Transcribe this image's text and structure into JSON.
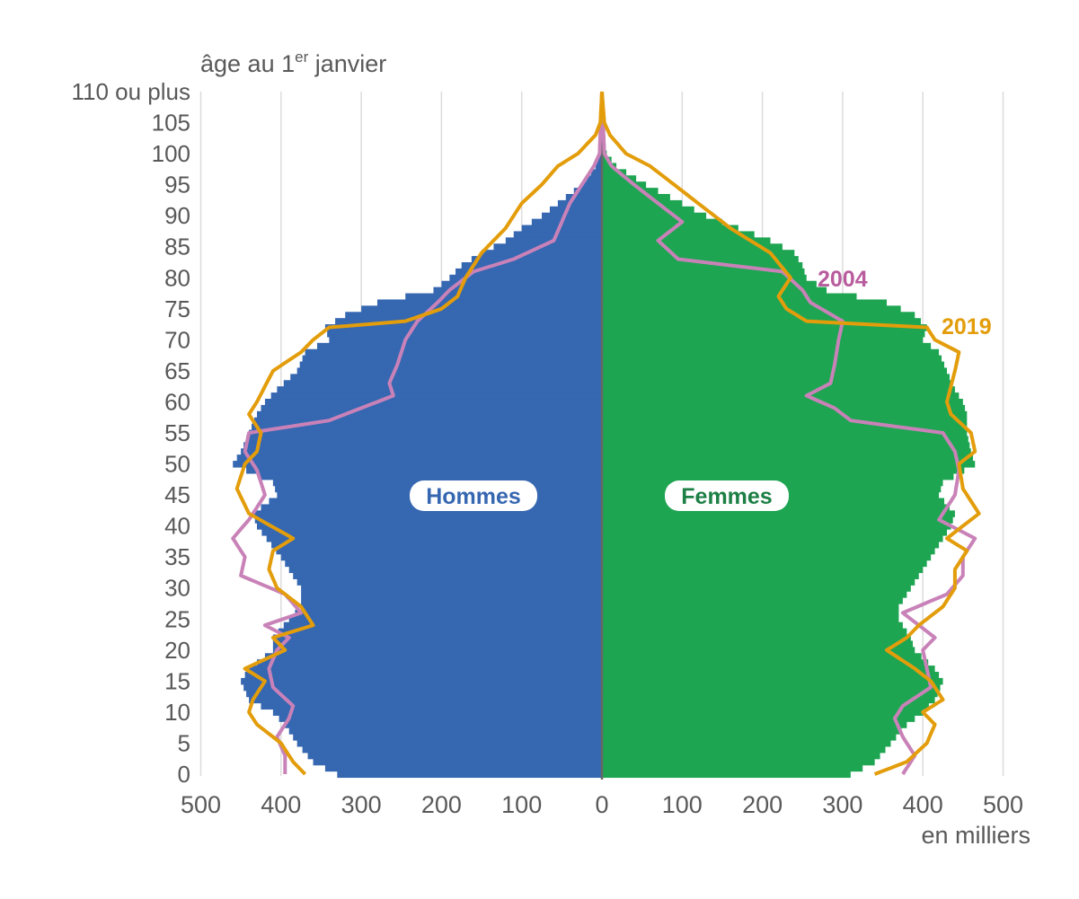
{
  "chart_data": {
    "type": "population-pyramid",
    "y_title": "âge au 1",
    "y_title_sup": "er",
    "y_title_end": " janvier",
    "x_unit_label": "en milliers",
    "x_ticks_left": [
      500,
      400,
      300,
      200,
      100,
      0
    ],
    "x_ticks_right": [
      100,
      200,
      300,
      400,
      500
    ],
    "y_ticks": [
      {
        "age": 110,
        "label": "110 ou plus"
      },
      {
        "age": 105,
        "label": "105"
      },
      {
        "age": 100,
        "label": "100"
      },
      {
        "age": 95,
        "label": "95"
      },
      {
        "age": 90,
        "label": "90"
      },
      {
        "age": 85,
        "label": "85"
      },
      {
        "age": 80,
        "label": "80"
      },
      {
        "age": 75,
        "label": "75"
      },
      {
        "age": 70,
        "label": "70"
      },
      {
        "age": 65,
        "label": "65"
      },
      {
        "age": 60,
        "label": "60"
      },
      {
        "age": 55,
        "label": "55"
      },
      {
        "age": 50,
        "label": "50"
      },
      {
        "age": 45,
        "label": "45"
      },
      {
        "age": 40,
        "label": "40"
      },
      {
        "age": 35,
        "label": "35"
      },
      {
        "age": 30,
        "label": "30"
      },
      {
        "age": 25,
        "label": "25"
      },
      {
        "age": 20,
        "label": "20"
      },
      {
        "age": 15,
        "label": "15"
      },
      {
        "age": 10,
        "label": "10"
      },
      {
        "age": 5,
        "label": "5"
      },
      {
        "age": 0,
        "label": "0"
      }
    ],
    "x_range": [
      -500,
      500
    ],
    "age_range": [
      0,
      110
    ],
    "colors": {
      "hommes": "#3667b1",
      "femmes": "#1ea552",
      "line_2019": "#e39d0b",
      "line_2004": "#c982b8",
      "line_2004_label": "#b85c9e",
      "axis_text": "#595959",
      "grid": "#dcdcdc",
      "center": "#666666"
    },
    "series": [
      {
        "name": "Hommes",
        "ages_knots": [
          0,
          2,
          5,
          8,
          10,
          12,
          15,
          17,
          20,
          22,
          25,
          27,
          30,
          35,
          40,
          42,
          45,
          47,
          50,
          52,
          55,
          58,
          60,
          62,
          65,
          68,
          70,
          72,
          74,
          76,
          78,
          80,
          82,
          84,
          86,
          88,
          90,
          92,
          95,
          98,
          100,
          103,
          105,
          110
        ],
        "values_knots": [
          330,
          360,
          380,
          395,
          410,
          440,
          450,
          440,
          410,
          410,
          390,
          375,
          375,
          400,
          430,
          435,
          405,
          410,
          460,
          450,
          440,
          430,
          420,
          405,
          380,
          370,
          340,
          345,
          320,
          280,
          210,
          190,
          175,
          150,
          120,
          100,
          75,
          55,
          25,
          8,
          3,
          1,
          0.5,
          0
        ]
      },
      {
        "name": "Femmes",
        "ages_knots": [
          0,
          2,
          5,
          8,
          10,
          12,
          15,
          17,
          20,
          22,
          25,
          27,
          30,
          35,
          40,
          42,
          45,
          47,
          50,
          52,
          55,
          58,
          60,
          62,
          65,
          68,
          70,
          72,
          74,
          76,
          78,
          80,
          82,
          84,
          86,
          88,
          90,
          92,
          95,
          98,
          100,
          103,
          105,
          110
        ],
        "values_knots": [
          310,
          340,
          360,
          380,
          400,
          415,
          425,
          415,
          390,
          385,
          370,
          370,
          385,
          410,
          435,
          440,
          420,
          425,
          465,
          460,
          455,
          455,
          450,
          440,
          430,
          420,
          400,
          405,
          390,
          355,
          280,
          255,
          250,
          240,
          210,
          170,
          130,
          100,
          55,
          18,
          6,
          2,
          1,
          0
        ]
      },
      {
        "name": "2019",
        "side_values_men_knots": [
          370,
          385,
          400,
          430,
          440,
          435,
          420,
          445,
          395,
          410,
          360,
          375,
          405,
          415,
          410,
          385,
          440,
          455,
          445,
          430,
          425,
          440,
          430,
          410,
          375,
          360,
          340,
          245,
          200,
          180,
          170,
          150,
          120,
          100,
          75,
          55,
          30,
          8,
          2,
          0
        ],
        "side_values_women_knots": [
          340,
          380,
          405,
          415,
          400,
          425,
          410,
          390,
          355,
          380,
          395,
          425,
          440,
          440,
          455,
          430,
          470,
          450,
          445,
          465,
          460,
          435,
          430,
          440,
          445,
          415,
          405,
          255,
          230,
          220,
          235,
          210,
          160,
          120,
          90,
          60,
          30,
          10,
          3,
          0
        ],
        "ages_knots": [
          0,
          2,
          5,
          8,
          10,
          12,
          15,
          17,
          20,
          22,
          24,
          27,
          30,
          33,
          36,
          38,
          42,
          46,
          50,
          52,
          55,
          58,
          60,
          65,
          68,
          70,
          72,
          73,
          75,
          77,
          80,
          84,
          88,
          92,
          95,
          98,
          100,
          103,
          105,
          110
        ]
      },
      {
        "name": "2004",
        "side_values_men_knots": [
          395,
          395,
          405,
          390,
          385,
          410,
          415,
          405,
          390,
          420,
          375,
          395,
          450,
          445,
          460,
          440,
          420,
          430,
          445,
          440,
          340,
          300,
          260,
          265,
          255,
          245,
          230,
          205,
          190,
          160,
          110,
          60,
          50,
          40,
          25,
          10,
          3,
          0
        ],
        "side_values_women_knots": [
          375,
          390,
          375,
          365,
          375,
          410,
          405,
          400,
          415,
          395,
          375,
          430,
          450,
          450,
          465,
          420,
          440,
          445,
          440,
          425,
          310,
          290,
          255,
          285,
          290,
          295,
          300,
          260,
          250,
          225,
          95,
          70,
          100,
          70,
          40,
          12,
          3,
          0
        ],
        "ages_knots": [
          0,
          3,
          6,
          9,
          11,
          14,
          17,
          20,
          22,
          24,
          26,
          29,
          32,
          35,
          38,
          41,
          45,
          49,
          52,
          55,
          57,
          59,
          61,
          63,
          66,
          70,
          73,
          76,
          78,
          81,
          83,
          86,
          89,
          92,
          95,
          98,
          100,
          110
        ]
      }
    ],
    "line_labels": {
      "y2019": "2019",
      "y2004": "2004"
    },
    "section_labels": {
      "men": "Hommes",
      "women": "Femmes"
    }
  }
}
